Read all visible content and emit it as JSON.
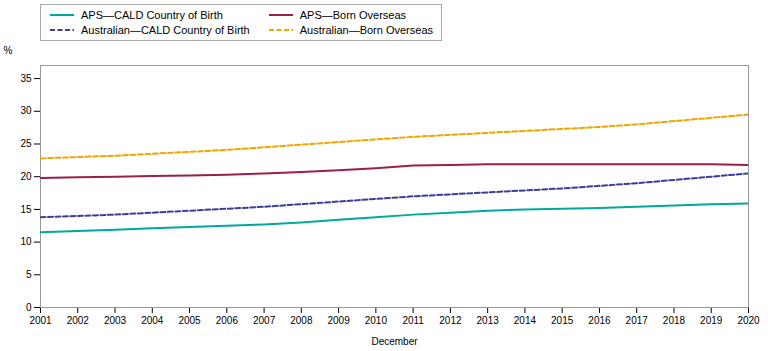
{
  "chart_data": {
    "type": "line",
    "xlabel": "December",
    "ylabel": "%",
    "x": [
      2001,
      2002,
      2003,
      2004,
      2005,
      2006,
      2007,
      2008,
      2009,
      2010,
      2011,
      2012,
      2013,
      2014,
      2015,
      2016,
      2017,
      2018,
      2019,
      2020
    ],
    "series": [
      {
        "name": "APS—CALD Country of Birth",
        "color": "#00a89d",
        "line_style": "solid",
        "values": [
          11.5,
          11.7,
          11.9,
          12.1,
          12.3,
          12.5,
          12.7,
          13.0,
          13.4,
          13.8,
          14.2,
          14.5,
          14.8,
          15.0,
          15.1,
          15.2,
          15.4,
          15.6,
          15.8,
          15.9
        ]
      },
      {
        "name": "APS—Born Overseas",
        "color": "#9b1f4a",
        "line_style": "solid",
        "values": [
          19.8,
          19.9,
          20.0,
          20.1,
          20.2,
          20.3,
          20.5,
          20.7,
          21.0,
          21.3,
          21.7,
          21.8,
          21.9,
          21.9,
          21.9,
          21.9,
          21.9,
          21.9,
          21.9,
          21.8
        ]
      },
      {
        "name": "Australian—CALD Country of Birth",
        "color": "#3d3d9e",
        "line_style": "dashed",
        "values": [
          13.8,
          14.0,
          14.2,
          14.5,
          14.8,
          15.1,
          15.4,
          15.8,
          16.2,
          16.6,
          17.0,
          17.3,
          17.6,
          17.9,
          18.2,
          18.6,
          19.0,
          19.5,
          20.0,
          20.5
        ]
      },
      {
        "name": "Australian—Born Overseas",
        "color": "#f0a500",
        "line_style": "dashed",
        "values": [
          22.8,
          23.0,
          23.2,
          23.5,
          23.8,
          24.1,
          24.5,
          24.9,
          25.3,
          25.7,
          26.1,
          26.4,
          26.7,
          27.0,
          27.3,
          27.6,
          28.0,
          28.5,
          29.0,
          29.5
        ]
      }
    ],
    "xlim": [
      2001,
      2020
    ],
    "xticks": [
      2001,
      2002,
      2003,
      2004,
      2005,
      2006,
      2007,
      2008,
      2009,
      2010,
      2011,
      2012,
      2013,
      2014,
      2015,
      2016,
      2017,
      2018,
      2019,
      2020
    ],
    "ylim": [
      0,
      37
    ],
    "yticks": [
      0,
      5,
      10,
      15,
      20,
      25,
      30,
      35
    ],
    "grid": false,
    "legend": "upper left"
  }
}
